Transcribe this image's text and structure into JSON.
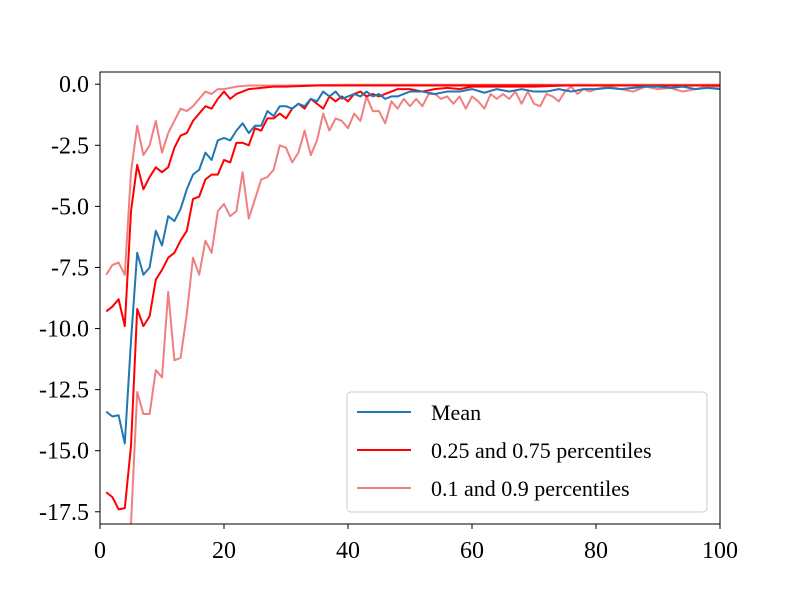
{
  "chart_data": {
    "type": "line",
    "title": "",
    "xlabel": "",
    "ylabel": "",
    "xlim": [
      0,
      100
    ],
    "ylim": [
      -18,
      0.5
    ],
    "xticks": [
      0,
      20,
      40,
      60,
      80,
      100
    ],
    "yticks": [
      0.0,
      -2.5,
      -5.0,
      -7.5,
      -10.0,
      -12.5,
      -15.0,
      -17.5
    ],
    "xtick_labels": [
      "0",
      "20",
      "40",
      "60",
      "80",
      "100"
    ],
    "ytick_labels": [
      "0.0",
      "-2.5",
      "-5.0",
      "-7.5",
      "-10.0",
      "-12.5",
      "-15.0",
      "-17.5"
    ],
    "grid": false,
    "legend_position": "lower-right",
    "series": [
      {
        "name": "Mean",
        "legend_label": "Mean",
        "color": "#1f77b4",
        "points": [
          [
            1,
            -13.4
          ],
          [
            2,
            -13.6
          ],
          [
            3,
            -13.55
          ],
          [
            4,
            -14.7
          ],
          [
            5,
            -10.5
          ],
          [
            6,
            -6.9
          ],
          [
            7,
            -7.8
          ],
          [
            8,
            -7.5
          ],
          [
            9,
            -6.0
          ],
          [
            10,
            -6.6
          ],
          [
            11,
            -5.4
          ],
          [
            12,
            -5.6
          ],
          [
            13,
            -5.1
          ],
          [
            14,
            -4.3
          ],
          [
            15,
            -3.7
          ],
          [
            16,
            -3.5
          ],
          [
            17,
            -2.8
          ],
          [
            18,
            -3.1
          ],
          [
            19,
            -2.3
          ],
          [
            20,
            -2.2
          ],
          [
            21,
            -2.3
          ],
          [
            22,
            -1.9
          ],
          [
            23,
            -1.6
          ],
          [
            24,
            -2.0
          ],
          [
            25,
            -1.7
          ],
          [
            26,
            -1.7
          ],
          [
            27,
            -1.1
          ],
          [
            28,
            -1.3
          ],
          [
            29,
            -0.9
          ],
          [
            30,
            -0.9
          ],
          [
            31,
            -1.0
          ],
          [
            32,
            -0.8
          ],
          [
            33,
            -0.9
          ],
          [
            34,
            -0.6
          ],
          [
            35,
            -0.7
          ],
          [
            36,
            -0.3
          ],
          [
            37,
            -0.5
          ],
          [
            38,
            -0.3
          ],
          [
            39,
            -0.6
          ],
          [
            40,
            -0.5
          ],
          [
            41,
            -0.4
          ],
          [
            42,
            -0.5
          ],
          [
            43,
            -0.3
          ],
          [
            44,
            -0.5
          ],
          [
            45,
            -0.4
          ],
          [
            46,
            -0.6
          ],
          [
            47,
            -0.5
          ],
          [
            48,
            -0.5
          ],
          [
            49,
            -0.4
          ],
          [
            50,
            -0.3
          ],
          [
            52,
            -0.3
          ],
          [
            54,
            -0.4
          ],
          [
            56,
            -0.3
          ],
          [
            58,
            -0.3
          ],
          [
            60,
            -0.2
          ],
          [
            62,
            -0.35
          ],
          [
            64,
            -0.2
          ],
          [
            66,
            -0.3
          ],
          [
            68,
            -0.2
          ],
          [
            70,
            -0.3
          ],
          [
            72,
            -0.3
          ],
          [
            74,
            -0.2
          ],
          [
            76,
            -0.3
          ],
          [
            78,
            -0.2
          ],
          [
            80,
            -0.2
          ],
          [
            82,
            -0.15
          ],
          [
            84,
            -0.2
          ],
          [
            86,
            -0.15
          ],
          [
            88,
            -0.1
          ],
          [
            90,
            -0.1
          ],
          [
            92,
            -0.15
          ],
          [
            94,
            -0.1
          ],
          [
            96,
            -0.2
          ],
          [
            98,
            -0.15
          ],
          [
            100,
            -0.2
          ]
        ]
      },
      {
        "name": "p25",
        "legend_label": "0.25 and 0.75 percentiles",
        "color": "#ff0000",
        "points": [
          [
            1,
            -16.7
          ],
          [
            2,
            -16.9
          ],
          [
            3,
            -17.4
          ],
          [
            4,
            -17.35
          ],
          [
            5,
            -14.8
          ],
          [
            6,
            -9.2
          ],
          [
            7,
            -9.9
          ],
          [
            8,
            -9.5
          ],
          [
            9,
            -8.0
          ],
          [
            10,
            -7.6
          ],
          [
            11,
            -7.1
          ],
          [
            12,
            -6.9
          ],
          [
            13,
            -6.4
          ],
          [
            14,
            -6.0
          ],
          [
            15,
            -4.7
          ],
          [
            16,
            -4.6
          ],
          [
            17,
            -3.9
          ],
          [
            18,
            -3.7
          ],
          [
            19,
            -3.7
          ],
          [
            20,
            -3.1
          ],
          [
            21,
            -3.2
          ],
          [
            22,
            -2.4
          ],
          [
            23,
            -2.4
          ],
          [
            24,
            -2.5
          ],
          [
            25,
            -1.8
          ],
          [
            26,
            -1.9
          ],
          [
            27,
            -1.4
          ],
          [
            28,
            -1.4
          ],
          [
            29,
            -1.2
          ],
          [
            30,
            -1.4
          ],
          [
            31,
            -1.0
          ],
          [
            32,
            -0.8
          ],
          [
            33,
            -1.0
          ],
          [
            34,
            -0.6
          ],
          [
            35,
            -0.8
          ],
          [
            36,
            -1.0
          ],
          [
            37,
            -0.5
          ],
          [
            38,
            -0.7
          ],
          [
            39,
            -0.5
          ],
          [
            40,
            -0.7
          ],
          [
            41,
            -0.4
          ],
          [
            42,
            -0.3
          ],
          [
            43,
            -0.5
          ],
          [
            44,
            -0.4
          ],
          [
            45,
            -0.5
          ],
          [
            46,
            -0.4
          ],
          [
            47,
            -0.3
          ],
          [
            48,
            -0.2
          ],
          [
            50,
            -0.2
          ],
          [
            52,
            -0.3
          ],
          [
            54,
            -0.2
          ],
          [
            56,
            -0.15
          ],
          [
            58,
            -0.2
          ],
          [
            60,
            -0.1
          ],
          [
            65,
            -0.1
          ],
          [
            70,
            -0.1
          ],
          [
            75,
            -0.05
          ],
          [
            80,
            -0.05
          ],
          [
            90,
            -0.05
          ],
          [
            100,
            -0.05
          ]
        ]
      },
      {
        "name": "p75",
        "legend_label": "",
        "color": "#ff0000",
        "points": [
          [
            1,
            -9.3
          ],
          [
            2,
            -9.1
          ],
          [
            3,
            -8.8
          ],
          [
            4,
            -9.9
          ],
          [
            5,
            -5.2
          ],
          [
            6,
            -3.3
          ],
          [
            7,
            -4.3
          ],
          [
            8,
            -3.8
          ],
          [
            9,
            -3.4
          ],
          [
            10,
            -3.6
          ],
          [
            11,
            -3.4
          ],
          [
            12,
            -2.6
          ],
          [
            13,
            -2.1
          ],
          [
            14,
            -2.0
          ],
          [
            15,
            -1.5
          ],
          [
            16,
            -1.2
          ],
          [
            17,
            -0.9
          ],
          [
            18,
            -1.0
          ],
          [
            19,
            -0.6
          ],
          [
            20,
            -0.3
          ],
          [
            21,
            -0.6
          ],
          [
            22,
            -0.4
          ],
          [
            23,
            -0.3
          ],
          [
            24,
            -0.2
          ],
          [
            26,
            -0.15
          ],
          [
            28,
            -0.1
          ],
          [
            30,
            -0.1
          ],
          [
            35,
            -0.05
          ],
          [
            40,
            -0.05
          ],
          [
            50,
            -0.05
          ],
          [
            60,
            -0.05
          ],
          [
            70,
            -0.05
          ],
          [
            80,
            -0.05
          ],
          [
            90,
            -0.05
          ],
          [
            100,
            -0.05
          ]
        ]
      },
      {
        "name": "p10",
        "legend_label": "0.1 and 0.9 percentiles",
        "color": "#f08080",
        "points": [
          [
            5,
            -18.0
          ],
          [
            6,
            -12.6
          ],
          [
            7,
            -13.5
          ],
          [
            8,
            -13.5
          ],
          [
            9,
            -11.7
          ],
          [
            10,
            -12.0
          ],
          [
            11,
            -8.5
          ],
          [
            12,
            -11.3
          ],
          [
            13,
            -11.2
          ],
          [
            14,
            -9.4
          ],
          [
            15,
            -7.1
          ],
          [
            16,
            -7.8
          ],
          [
            17,
            -6.4
          ],
          [
            18,
            -6.9
          ],
          [
            19,
            -5.2
          ],
          [
            20,
            -4.9
          ],
          [
            21,
            -5.4
          ],
          [
            22,
            -5.2
          ],
          [
            23,
            -3.6
          ],
          [
            24,
            -5.5
          ],
          [
            25,
            -4.7
          ],
          [
            26,
            -3.9
          ],
          [
            27,
            -3.8
          ],
          [
            28,
            -3.5
          ],
          [
            29,
            -2.5
          ],
          [
            30,
            -2.6
          ],
          [
            31,
            -3.2
          ],
          [
            32,
            -2.8
          ],
          [
            33,
            -1.9
          ],
          [
            34,
            -2.9
          ],
          [
            35,
            -2.3
          ],
          [
            36,
            -1.2
          ],
          [
            37,
            -1.9
          ],
          [
            38,
            -1.4
          ],
          [
            39,
            -1.5
          ],
          [
            40,
            -1.8
          ],
          [
            41,
            -1.2
          ],
          [
            42,
            -1.5
          ],
          [
            43,
            -0.5
          ],
          [
            44,
            -1.1
          ],
          [
            45,
            -1.1
          ],
          [
            46,
            -1.6
          ],
          [
            47,
            -0.7
          ],
          [
            48,
            -1.0
          ],
          [
            49,
            -0.6
          ],
          [
            50,
            -0.9
          ],
          [
            51,
            -0.6
          ],
          [
            52,
            -0.9
          ],
          [
            53,
            -0.4
          ],
          [
            54,
            -0.4
          ],
          [
            55,
            -0.6
          ],
          [
            56,
            -0.5
          ],
          [
            57,
            -0.8
          ],
          [
            58,
            -0.5
          ],
          [
            59,
            -1.0
          ],
          [
            60,
            -0.5
          ],
          [
            61,
            -0.7
          ],
          [
            62,
            -1.0
          ],
          [
            63,
            -0.4
          ],
          [
            64,
            -0.6
          ],
          [
            65,
            -0.4
          ],
          [
            66,
            -0.6
          ],
          [
            67,
            -0.3
          ],
          [
            68,
            -0.8
          ],
          [
            69,
            -0.3
          ],
          [
            70,
            -0.8
          ],
          [
            71,
            -0.9
          ],
          [
            72,
            -0.4
          ],
          [
            73,
            -0.5
          ],
          [
            74,
            -0.7
          ],
          [
            75,
            -0.3
          ],
          [
            76,
            -0.1
          ],
          [
            77,
            -0.4
          ],
          [
            78,
            -0.2
          ],
          [
            79,
            -0.3
          ],
          [
            80,
            -0.2
          ],
          [
            82,
            -0.1
          ],
          [
            84,
            -0.2
          ],
          [
            86,
            -0.3
          ],
          [
            88,
            -0.1
          ],
          [
            90,
            -0.2
          ],
          [
            92,
            -0.15
          ],
          [
            94,
            -0.3
          ],
          [
            96,
            -0.2
          ],
          [
            98,
            -0.1
          ],
          [
            100,
            -0.1
          ]
        ]
      },
      {
        "name": "p90",
        "legend_label": "",
        "color": "#f08080",
        "points": [
          [
            1,
            -7.8
          ],
          [
            2,
            -7.4
          ],
          [
            3,
            -7.3
          ],
          [
            4,
            -7.8
          ],
          [
            5,
            -3.6
          ],
          [
            6,
            -1.7
          ],
          [
            7,
            -2.9
          ],
          [
            8,
            -2.5
          ],
          [
            9,
            -1.5
          ],
          [
            10,
            -2.8
          ],
          [
            11,
            -2.0
          ],
          [
            12,
            -1.5
          ],
          [
            13,
            -1.0
          ],
          [
            14,
            -1.1
          ],
          [
            15,
            -0.9
          ],
          [
            16,
            -0.6
          ],
          [
            17,
            -0.3
          ],
          [
            18,
            -0.4
          ],
          [
            19,
            -0.2
          ],
          [
            20,
            -0.2
          ],
          [
            22,
            -0.1
          ],
          [
            24,
            -0.05
          ],
          [
            26,
            -0.05
          ],
          [
            30,
            -0.05
          ],
          [
            40,
            -0.02
          ],
          [
            50,
            -0.02
          ],
          [
            60,
            -0.02
          ],
          [
            70,
            -0.02
          ],
          [
            80,
            -0.02
          ],
          [
            90,
            -0.02
          ],
          [
            100,
            -0.02
          ]
        ]
      }
    ]
  }
}
